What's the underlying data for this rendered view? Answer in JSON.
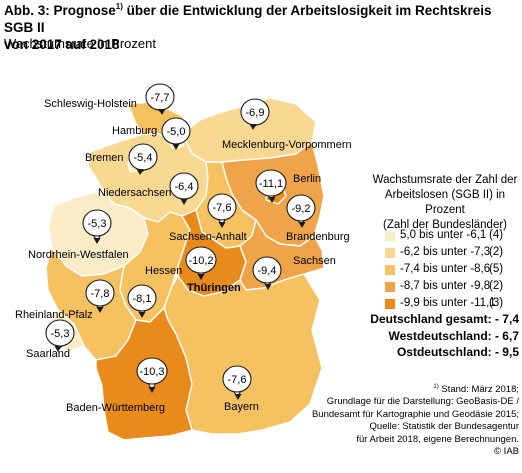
{
  "header": {
    "title_part1": "Abb. 3: Prognose",
    "title_sup": "1)",
    "title_part2": " über die Entwicklung der Arbeitslosigkeit im Rechtskreis SGB II",
    "title_line2": "von 2017 auf 2018",
    "subtitle": "Wachstumsrate in Prozent"
  },
  "colors": {
    "class1": "#fbecc8",
    "class2": "#f9d992",
    "class3": "#f6c160",
    "class4": "#f0a44a",
    "class5": "#e98b1a",
    "border": "#ffffff",
    "pin": "#1a1a1a"
  },
  "states": [
    {
      "name": "Schleswig-Holstein",
      "value": "-7,7",
      "class": "class3"
    },
    {
      "name": "Hamburg",
      "value": "-5,0",
      "class": "class1"
    },
    {
      "name": "Mecklenburg-Vorpommern",
      "value": "-6,9",
      "class": "class2"
    },
    {
      "name": "Bremen",
      "value": "-5,4",
      "class": "class1"
    },
    {
      "name": "Niedersachsen",
      "value": "-6,4",
      "class": "class2"
    },
    {
      "name": "Berlin",
      "value": "-11,1",
      "class": "class5"
    },
    {
      "name": "Brandenburg",
      "value": "-9,2",
      "class": "class4"
    },
    {
      "name": "Sachsen-Anhalt",
      "value": "-7,6",
      "class": "class3"
    },
    {
      "name": "Nordrhein-Westfalen",
      "value": "-5,3",
      "class": "class1"
    },
    {
      "name": "Sachsen",
      "value": "-9,4",
      "class": "class4"
    },
    {
      "name": "Hessen",
      "value": "-8,1",
      "class": "class3"
    },
    {
      "name": "Thüringen",
      "value": "-10,2",
      "class": "class5"
    },
    {
      "name": "Rheinland-Pfalz",
      "value": "-7,8",
      "class": "class3"
    },
    {
      "name": "Saarland",
      "value": "-5,3",
      "class": "class1"
    },
    {
      "name": "Baden-Württemberg",
      "value": "-10,3",
      "class": "class5"
    },
    {
      "name": "Bayern",
      "value": "-7,6",
      "class": "class3"
    }
  ],
  "legend": {
    "title": [
      "Wachstumsrate der Zahl der",
      "Arbeitslosen (SGB II) in Prozent",
      "(Zahl der Bundesländer)"
    ],
    "items": [
      {
        "range": "5,0 bis unter -6,1",
        "count": "(4)",
        "class": "class1"
      },
      {
        "range": "-6,2 bis unter -7,3",
        "count": "(2)",
        "class": "class2"
      },
      {
        "range": "-7,4 bis unter -8,6",
        "count": "(5)",
        "class": "class3"
      },
      {
        "range": "-8,7 bis unter -9,8",
        "count": "(2)",
        "class": "class4"
      },
      {
        "range": "-9,9 bis unter -11,1",
        "count": "(3)",
        "class": "class5"
      }
    ]
  },
  "totals": [
    "Deutschland gesamt: - 7,4",
    "Westdeutschland: - 6,7",
    "Ostdeutschland: - 9,5"
  ],
  "source": {
    "footnote_sup": "1)",
    "footnote": " Stand: März 2018;",
    "lines": [
      "Grundlage für die Darstellung: GeoBasis-DE /",
      "Bundesamt für Kartographie und Geodäsie 2015;",
      "Quelle: Statistik der Bundesagentur",
      "für Arbeit 2018, eigene Berechnungen.",
      "© IAB"
    ]
  }
}
